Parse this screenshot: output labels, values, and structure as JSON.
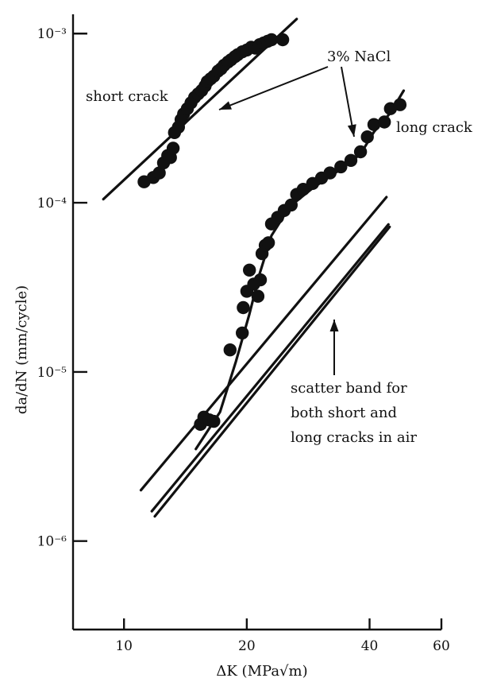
{
  "chart_data": {
    "type": "scatter",
    "xlabel": "ΔK (MPa√m)",
    "ylabel": "da/dN (mm/cycle)",
    "xscale": "log",
    "yscale": "log",
    "xlim": [
      7.5,
      60
    ],
    "ylim": [
      3e-07,
      0.0013
    ],
    "xticks": [
      {
        "value": 10,
        "label": "10"
      },
      {
        "value": 20,
        "label": "20"
      },
      {
        "value": 40,
        "label": "40"
      },
      {
        "value": 60,
        "label": "60"
      }
    ],
    "yticks": [
      {
        "value": 0.001,
        "label": "10⁻³"
      },
      {
        "value": 0.0001,
        "label": "10⁻⁴"
      },
      {
        "value": 1e-05,
        "label": "10⁻⁵"
      },
      {
        "value": 1e-06,
        "label": "10⁻⁶"
      }
    ],
    "grid": false,
    "series": [
      {
        "name": "short crack",
        "marker": "circle",
        "points": [
          [
            11.2,
            0.000133
          ],
          [
            11.8,
            0.000141
          ],
          [
            12.2,
            0.00015
          ],
          [
            12.5,
            0.000172
          ],
          [
            12.8,
            0.00019
          ],
          [
            13.0,
            0.000185
          ],
          [
            13.2,
            0.00021
          ],
          [
            13.3,
            0.00026
          ],
          [
            13.6,
            0.00028
          ],
          [
            13.8,
            0.00031
          ],
          [
            14.0,
            0.000335
          ],
          [
            14.3,
            0.00036
          ],
          [
            14.6,
            0.00039
          ],
          [
            14.9,
            0.00042
          ],
          [
            15.2,
            0.00044
          ],
          [
            15.5,
            0.00046
          ],
          [
            15.8,
            0.00049
          ],
          [
            16.0,
            0.00052
          ],
          [
            16.3,
            0.00054
          ],
          [
            16.6,
            0.00056
          ],
          [
            17.0,
            0.0006
          ],
          [
            17.3,
            0.00062
          ],
          [
            17.6,
            0.00065
          ],
          [
            18.0,
            0.00068
          ],
          [
            18.3,
            0.0007
          ],
          [
            18.7,
            0.00073
          ],
          [
            19.0,
            0.00075
          ],
          [
            19.5,
            0.00078
          ],
          [
            20.0,
            0.0008
          ],
          [
            20.5,
            0.00083
          ],
          [
            21.0,
            0.00082
          ],
          [
            21.5,
            0.00086
          ],
          [
            22.0,
            0.00088
          ],
          [
            22.5,
            0.0009
          ],
          [
            23.0,
            0.00092
          ],
          [
            24.5,
            0.00092
          ]
        ]
      },
      {
        "name": "long crack",
        "marker": "circle",
        "points": [
          [
            15.4,
            4.9e-06
          ],
          [
            15.7,
            5.4e-06
          ],
          [
            16.2,
            5.2e-06
          ],
          [
            16.6,
            5.1e-06
          ],
          [
            18.2,
            1.35e-05
          ],
          [
            19.5,
            1.7e-05
          ],
          [
            19.6,
            2.4e-05
          ],
          [
            20.0,
            3e-05
          ],
          [
            20.3,
            4e-05
          ],
          [
            20.8,
            3.3e-05
          ],
          [
            21.3,
            2.8e-05
          ],
          [
            21.6,
            3.5e-05
          ],
          [
            21.8,
            5e-05
          ],
          [
            22.2,
            5.6e-05
          ],
          [
            22.6,
            5.8e-05
          ],
          [
            23.0,
            7.5e-05
          ],
          [
            23.8,
            8.2e-05
          ],
          [
            24.7,
            9e-05
          ],
          [
            25.7,
            9.7e-05
          ],
          [
            26.5,
            0.000112
          ],
          [
            27.5,
            0.00012
          ],
          [
            29.0,
            0.00013
          ],
          [
            30.5,
            0.00014
          ],
          [
            32.0,
            0.00015
          ],
          [
            34.0,
            0.000163
          ],
          [
            36.0,
            0.000178
          ],
          [
            38.0,
            0.0002
          ],
          [
            39.5,
            0.000245
          ],
          [
            41.0,
            0.00029
          ],
          [
            43.5,
            0.0003
          ],
          [
            45.0,
            0.00036
          ],
          [
            47.5,
            0.00038
          ]
        ]
      }
    ],
    "lines": [
      {
        "role": "short-crack-fit",
        "points": [
          [
            8.9,
            0.000105
          ],
          [
            26.5,
            0.00122
          ]
        ]
      },
      {
        "role": "long-crack-fit",
        "points": [
          [
            15.0,
            3.5e-06
          ],
          [
            17.2,
            5.8e-06
          ],
          [
            18.8,
            1.15e-05
          ],
          [
            20.3,
            2.2e-05
          ],
          [
            21.5,
            3.8e-05
          ],
          [
            23.0,
            6.4e-05
          ],
          [
            25.5,
            9.5e-05
          ],
          [
            29.0,
            0.000122
          ],
          [
            34.0,
            0.000158
          ],
          [
            38.0,
            0.000194
          ],
          [
            41.0,
            0.000262
          ],
          [
            45.0,
            0.00034
          ],
          [
            48.5,
            0.00046
          ]
        ]
      },
      {
        "role": "scatter-band-upper",
        "points": [
          [
            11.0,
            2e-06
          ],
          [
            44.0,
            0.000108
          ]
        ]
      },
      {
        "role": "scatter-band-lower",
        "points": [
          [
            11.7,
            1.5e-06
          ],
          [
            44.5,
            7.45e-05
          ]
        ]
      },
      {
        "role": "scatter-band-lower-2",
        "points": [
          [
            11.9,
            1.4e-06
          ],
          [
            44.8,
            7.2e-05
          ]
        ]
      }
    ],
    "annotations": {
      "nacl": "3% NaCl",
      "short_crack": "short crack",
      "long_crack": "long crack",
      "scatter_band": [
        "scatter band for",
        "both short and",
        "long cracks in air"
      ]
    }
  }
}
